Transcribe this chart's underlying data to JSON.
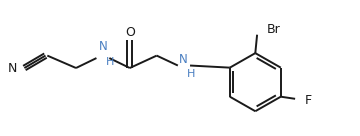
{
  "background_color": "#ffffff",
  "line_color": "#1a1a1a",
  "label_color_nh": "#4a7fc1",
  "label_color_n": "#1a1a1a",
  "label_color_o": "#1a1a1a",
  "label_color_br": "#1a1a1a",
  "label_color_f": "#1a1a1a",
  "line_width": 1.4,
  "font_size": 8.5,
  "fig_width": 3.6,
  "fig_height": 1.36,
  "dpi": 100,
  "xlim": [
    0,
    10
  ],
  "ylim": [
    0,
    3.8
  ]
}
